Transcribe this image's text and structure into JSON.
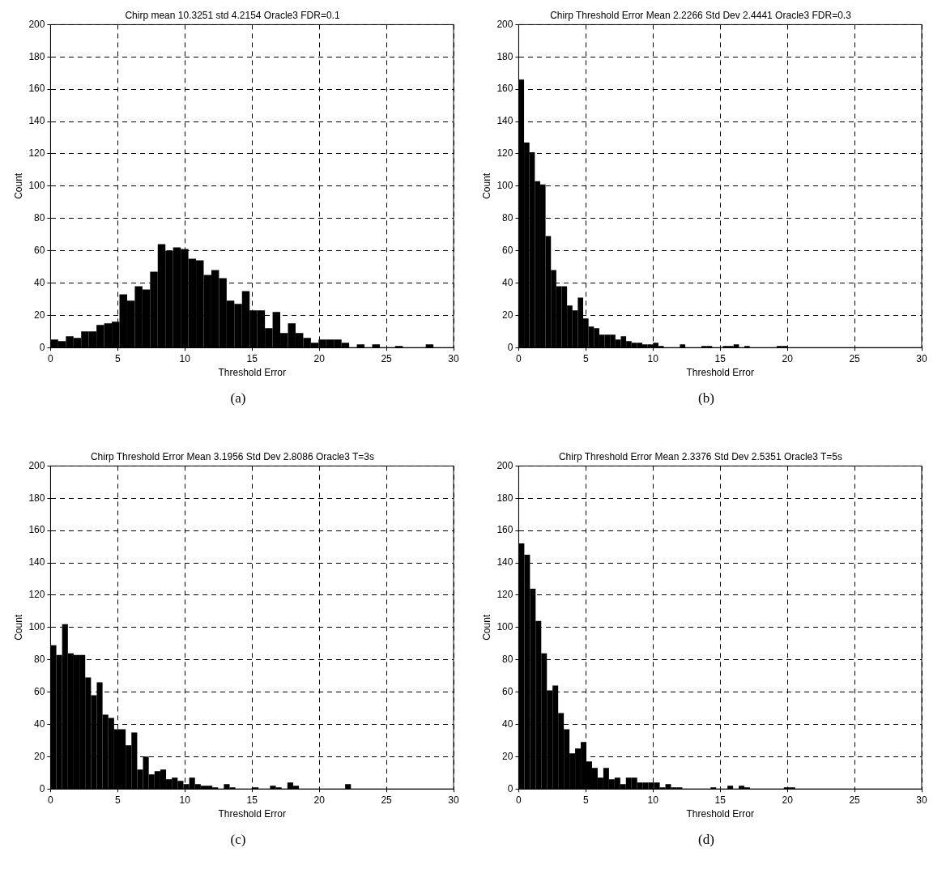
{
  "chart_data": [
    {
      "type": "histogram",
      "title": "Chirp mean 10.3251 std 4.2154 Oracle3 FDR=0.1",
      "xlabel": "Threshold Error",
      "ylabel": "Count",
      "color": "#000000",
      "grid": true,
      "xlim": [
        0,
        30
      ],
      "xticks": [
        0,
        5,
        10,
        15,
        20,
        25,
        30
      ],
      "ylim": [
        0,
        200
      ],
      "yticks": [
        0,
        20,
        40,
        60,
        80,
        100,
        120,
        140,
        160,
        180,
        200
      ],
      "annotations": [
        "(a)"
      ],
      "bins": [
        0,
        0.57,
        1.14,
        1.71,
        2.28,
        2.85,
        3.42,
        3.99,
        4.56,
        5.13,
        5.7,
        6.27,
        6.84,
        7.41,
        7.98,
        8.55,
        9.12,
        9.69,
        10.26,
        10.83,
        11.4,
        11.97,
        12.54,
        13.11,
        13.68,
        14.25,
        14.82,
        15.39,
        15.96,
        16.53,
        17.1,
        17.67,
        18.24,
        18.81,
        19.38,
        19.95,
        20.52,
        21.09,
        21.66,
        22.23,
        22.8,
        23.37,
        23.94,
        24.51,
        25.08,
        25.65,
        26.22,
        26.79,
        27.36,
        27.93,
        28.5,
        29.07,
        29.64
      ],
      "values": [
        5,
        4,
        7,
        6,
        10,
        10,
        14,
        15,
        16,
        33,
        29,
        38,
        36,
        47,
        64,
        60,
        62,
        61,
        55,
        54,
        45,
        48,
        43,
        29,
        27,
        35,
        23,
        23,
        12,
        22,
        9,
        15,
        9,
        6,
        3,
        5,
        5,
        5,
        3,
        0,
        2,
        0,
        2,
        0,
        0,
        1,
        0,
        0,
        0,
        2,
        0,
        0
      ]
    },
    {
      "type": "histogram",
      "title": "Chirp Threshold Error Mean 2.2266 Std Dev 2.4441 Oracle3 FDR=0.3",
      "xlabel": "Threshold Error",
      "ylabel": "Count",
      "color": "#000000",
      "grid": true,
      "xlim": [
        0,
        30
      ],
      "xticks": [
        0,
        5,
        10,
        15,
        20,
        25,
        30
      ],
      "ylim": [
        0,
        200
      ],
      "yticks": [
        0,
        20,
        40,
        60,
        80,
        100,
        120,
        140,
        160,
        180,
        200
      ],
      "annotations": [
        "(b)"
      ],
      "bins": [
        0,
        0.4,
        0.8,
        1.2,
        1.6,
        2,
        2.4,
        2.8,
        3.2,
        3.6,
        4,
        4.4,
        4.8,
        5.2,
        5.6,
        6,
        6.4,
        6.8,
        7.2,
        7.6,
        8,
        8.4,
        8.8,
        9.2,
        9.6,
        10,
        10.4,
        10.8,
        11.2,
        11.6,
        12,
        12.4,
        12.8,
        13.2,
        13.6,
        14,
        14.4,
        14.8,
        15.2,
        15.6,
        16,
        16.4,
        16.8,
        17.2,
        17.6,
        18,
        18.4,
        18.8,
        19.2,
        19.6,
        20,
        20.4,
        20.8,
        21.2,
        21.6,
        22,
        22.4,
        22.8,
        23.2,
        23.6,
        24,
        24.4,
        24.8,
        25.2,
        25.6,
        26,
        26.4,
        26.8,
        27.2,
        27.6,
        28,
        28.4,
        28.8,
        29.2,
        29.6,
        30
      ],
      "values": [
        166,
        127,
        121,
        103,
        101,
        69,
        48,
        38,
        38,
        26,
        23,
        31,
        18,
        13,
        12,
        8,
        8,
        8,
        5,
        7,
        4,
        3,
        3,
        2,
        2,
        3,
        1,
        0,
        0,
        0,
        2,
        0,
        0,
        0,
        1,
        1,
        0,
        0,
        1,
        1,
        2,
        0,
        1,
        0,
        0,
        0,
        0,
        0,
        1,
        1,
        0,
        0,
        0,
        0,
        0,
        0,
        0,
        0,
        0,
        0,
        0,
        0,
        0,
        0,
        0,
        0,
        0,
        0,
        0,
        0,
        0,
        0,
        0,
        0,
        0
      ]
    },
    {
      "type": "histogram",
      "title": "Chirp Threshold Error Mean 3.1956 Std Dev 2.8086 Oracle3 T=3s",
      "xlabel": "Threshold Error",
      "ylabel": "Count",
      "color": "#000000",
      "grid": true,
      "xlim": [
        0,
        30
      ],
      "xticks": [
        0,
        5,
        10,
        15,
        20,
        25,
        30
      ],
      "ylim": [
        0,
        200
      ],
      "yticks": [
        0,
        20,
        40,
        60,
        80,
        100,
        120,
        140,
        160,
        180,
        200
      ],
      "annotations": [
        "(c)"
      ],
      "bins": [
        0,
        0.43,
        0.86,
        1.29,
        1.72,
        2.15,
        2.58,
        3.01,
        3.44,
        3.87,
        4.3,
        4.73,
        5.16,
        5.59,
        6.02,
        6.45,
        6.88,
        7.31,
        7.74,
        8.17,
        8.6,
        9.03,
        9.46,
        9.89,
        10.32,
        10.75,
        11.18,
        11.61,
        12.04,
        12.47,
        12.9,
        13.33,
        13.76,
        14.19,
        14.62,
        15.05,
        15.48,
        15.91,
        16.34,
        16.77,
        17.2,
        17.63,
        18.06,
        18.49,
        18.92,
        19.35,
        19.78,
        20.21,
        20.64,
        21.07,
        21.5,
        21.93,
        22.36,
        22.79,
        23.22,
        23.65,
        24.08,
        24.51,
        24.94,
        25.37,
        25.8,
        26.23,
        26.66,
        27.09,
        27.52,
        27.95,
        28.38,
        28.81,
        29.24,
        29.67
      ],
      "values": [
        89,
        83,
        102,
        84,
        83,
        83,
        69,
        58,
        66,
        46,
        44,
        37,
        37,
        27,
        35,
        12,
        20,
        9,
        11,
        12,
        6,
        7,
        5,
        3,
        7,
        3,
        2,
        2,
        1,
        0,
        3,
        1,
        0,
        0,
        0,
        1,
        0,
        0,
        2,
        1,
        0,
        4,
        2,
        0,
        0,
        0,
        0,
        0,
        0,
        0,
        0,
        3,
        0,
        0,
        0,
        0,
        0,
        0,
        0,
        0,
        0,
        0,
        0,
        0,
        0,
        0,
        0,
        0,
        0
      ]
    },
    {
      "type": "histogram",
      "title": "Chirp Threshold Error Mean 2.3376 Std Dev 2.5351 Oracle3 T=5s",
      "xlabel": "Threshold Error",
      "ylabel": "Count",
      "color": "#000000",
      "grid": true,
      "xlim": [
        0,
        30
      ],
      "xticks": [
        0,
        5,
        10,
        15,
        20,
        25,
        30
      ],
      "ylim": [
        0,
        200
      ],
      "yticks": [
        0,
        20,
        40,
        60,
        80,
        100,
        120,
        140,
        160,
        180,
        200
      ],
      "annotations": [
        "(d)"
      ],
      "bins": [
        0,
        0.42,
        0.84,
        1.26,
        1.68,
        2.1,
        2.52,
        2.94,
        3.36,
        3.78,
        4.2,
        4.62,
        5.04,
        5.46,
        5.88,
        6.3,
        6.72,
        7.14,
        7.56,
        7.98,
        8.4,
        8.82,
        9.24,
        9.66,
        10.08,
        10.5,
        10.92,
        11.34,
        11.76,
        12.18,
        12.6,
        13.02,
        13.44,
        13.86,
        14.28,
        14.7,
        15.12,
        15.54,
        15.96,
        16.38,
        16.8,
        17.22,
        17.64,
        18.06,
        18.48,
        18.9,
        19.32,
        19.74,
        20.16,
        20.58,
        21,
        21.42,
        21.84,
        22.26,
        22.68,
        23.1,
        23.52,
        23.94,
        24.36,
        24.78,
        25.2,
        25.62,
        26.04,
        26.46,
        26.88,
        27.3,
        27.72,
        28.14,
        28.56,
        28.98,
        29.4,
        29.82
      ],
      "values": [
        152,
        145,
        124,
        104,
        84,
        61,
        64,
        47,
        37,
        22,
        25,
        29,
        17,
        13,
        7,
        13,
        6,
        7,
        3,
        7,
        7,
        4,
        4,
        4,
        4,
        1,
        3,
        1,
        1,
        0,
        0,
        0,
        0,
        0,
        1,
        0,
        0,
        2,
        0,
        2,
        1,
        0,
        0,
        0,
        0,
        0,
        0,
        1,
        1,
        0,
        0,
        0,
        0,
        0,
        0,
        0,
        0,
        0,
        0,
        0,
        0,
        0,
        0,
        0,
        0,
        0,
        0,
        0,
        0,
        0,
        0
      ]
    }
  ]
}
